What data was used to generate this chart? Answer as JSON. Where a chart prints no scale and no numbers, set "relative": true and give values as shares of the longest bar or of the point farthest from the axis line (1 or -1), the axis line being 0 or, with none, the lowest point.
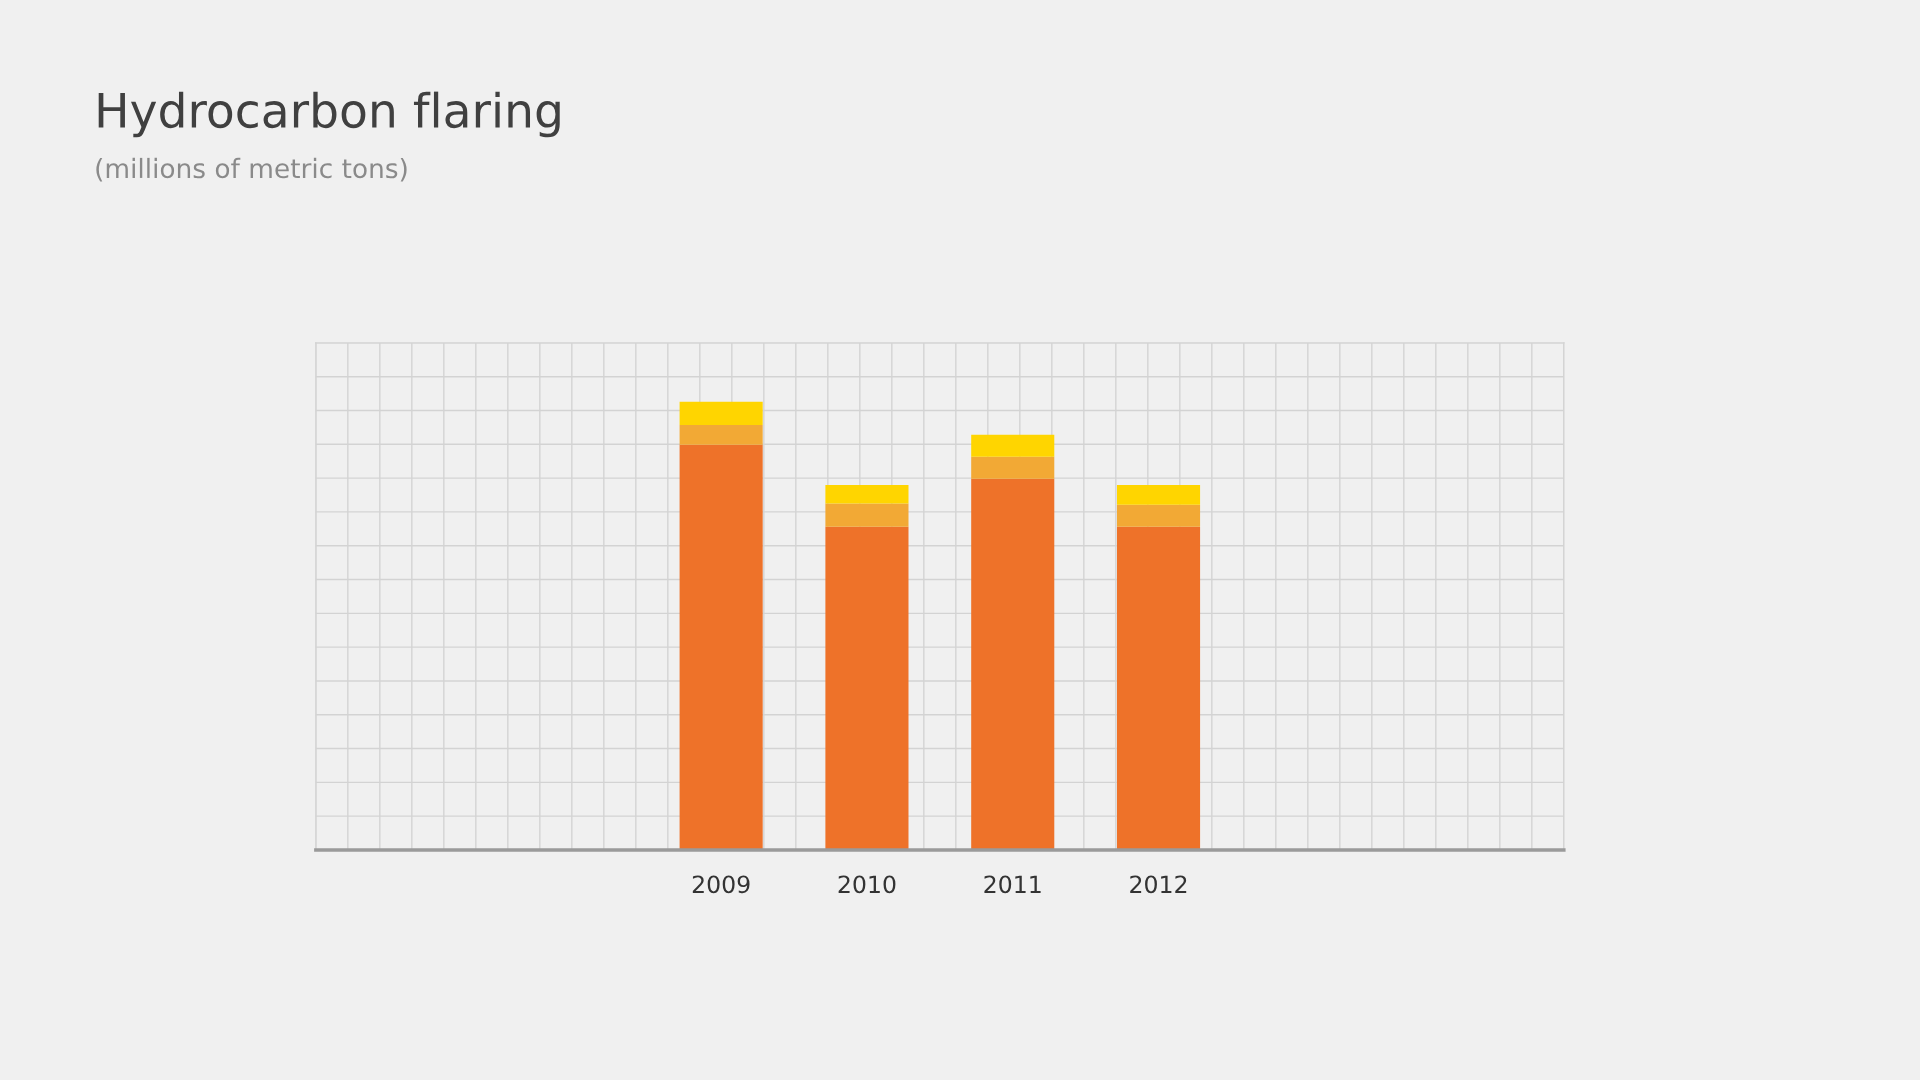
{
  "chart_data": {
    "type": "bar",
    "title": "Hydrocarbon flaring",
    "subtitle": "(millions of metric tons)",
    "categories": [
      "2009",
      "2010",
      "2011",
      "2012"
    ],
    "stacked": true,
    "relative": true,
    "grid": true,
    "series": [
      {
        "color": "#ee7229",
        "values": [
          0.904,
          0.721,
          0.828,
          0.721
        ]
      },
      {
        "color": "#f2a935",
        "values": [
          0.044,
          0.052,
          0.049,
          0.049
        ]
      },
      {
        "color": "#ffd500",
        "values": [
          0.052,
          0.041,
          0.049,
          0.044
        ]
      }
    ]
  }
}
